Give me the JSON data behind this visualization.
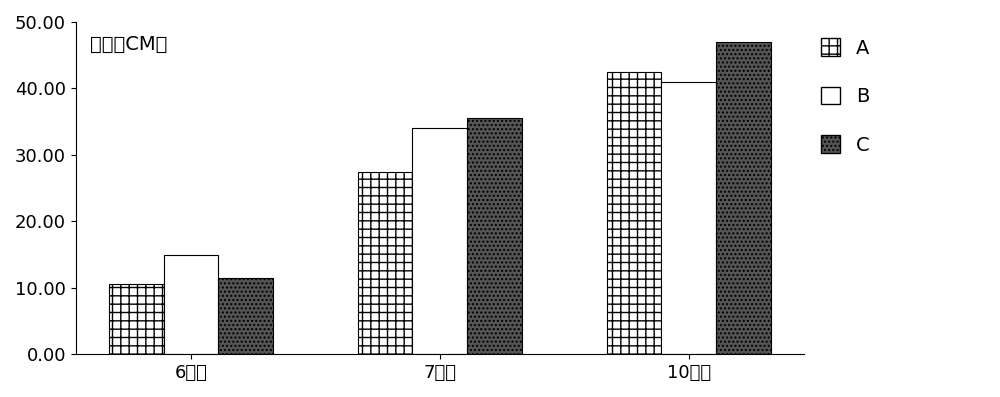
{
  "categories": [
    "6月份",
    "7月份",
    "10月份"
  ],
  "series": [
    {
      "label": "A",
      "values": [
        10.5,
        27.5,
        42.5
      ],
      "hatch": "++",
      "facecolor": "white",
      "edgecolor": "black"
    },
    {
      "label": "B",
      "values": [
        15.0,
        34.0,
        41.0
      ],
      "hatch": "~~",
      "facecolor": "white",
      "edgecolor": "black"
    },
    {
      "label": "C",
      "values": [
        11.5,
        35.5,
        47.0
      ],
      "hatch": "....",
      "facecolor": "#555555",
      "edgecolor": "black"
    }
  ],
  "ylabel": "株高（CM）",
  "ylim": [
    0,
    50
  ],
  "yticks": [
    0.0,
    10.0,
    20.0,
    30.0,
    40.0,
    50.0
  ],
  "bar_width": 0.22,
  "legend_fontsize": 14,
  "tick_fontsize": 13,
  "ylabel_fontsize": 14,
  "background_color": "#ffffff"
}
